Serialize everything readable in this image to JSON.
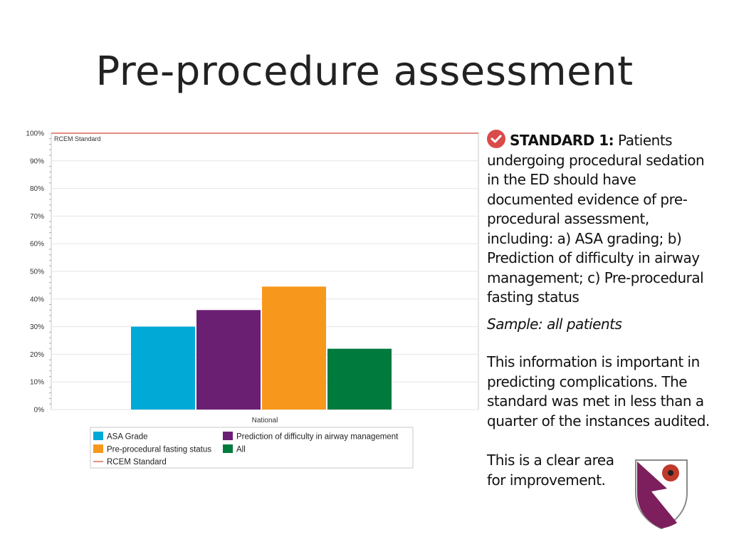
{
  "slide": {
    "title": "Pre-procedure assessment",
    "standard_label": "STANDARD 1:",
    "standard_text": "Patients undergoing procedural sedation in the ED should have documented evidence of pre-procedural assessment, including: a) ASA grading; b) Prediction of difficulty in airway management; c) Pre-procedural fasting status",
    "sample": "Sample: all patients",
    "info": "This information is important in predicting complications. The standard was met in less than a quarter of the instances audited.",
    "improvement": "This is a clear area for improvement.",
    "icons": {
      "check": "check-circle-icon",
      "crest": "shield-crest-icon"
    }
  },
  "chart_data": {
    "type": "bar",
    "categories": [
      "National"
    ],
    "series": [
      {
        "name": "ASA Grade",
        "values": [
          30
        ],
        "color": "#00a9d6"
      },
      {
        "name": "Prediction of difficulty in airway management",
        "values": [
          36
        ],
        "color": "#6b1f73"
      },
      {
        "name": "Pre-procedural fasting status",
        "values": [
          44.5
        ],
        "color": "#f7981d"
      },
      {
        "name": "All",
        "values": [
          22
        ],
        "color": "#007a3d"
      }
    ],
    "reference_line": {
      "name": "RCEM Standard",
      "value": 100,
      "color": "#d96a5a",
      "label": "RCEM Standard"
    },
    "yticks": [
      "0%",
      "10%",
      "20%",
      "30%",
      "40%",
      "50%",
      "60%",
      "70%",
      "80%",
      "90%",
      "100%"
    ],
    "ylim": [
      0,
      100
    ],
    "grid": true,
    "legend_placement": "bottom"
  }
}
